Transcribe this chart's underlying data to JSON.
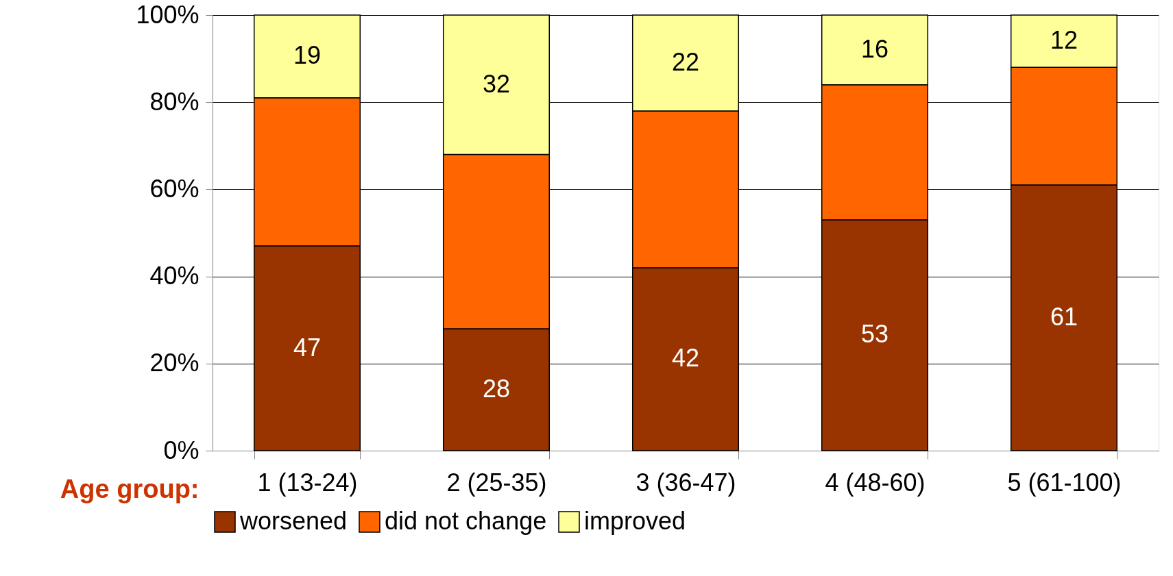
{
  "chart_data": {
    "type": "bar",
    "stacked": true,
    "xlabel": "Age group:",
    "categories": [
      "1 (13-24)",
      "2 (25-35)",
      "3 (36-47)",
      "4 (48-60)",
      "5 (61-100)"
    ],
    "series": [
      {
        "name": "worsened",
        "color": "#993300",
        "values": [
          47,
          28,
          42,
          53,
          61
        ],
        "value_labels": [
          "47",
          "28",
          "42",
          "53",
          "61"
        ]
      },
      {
        "name": "did not change",
        "color": "#ff6600",
        "values": [
          34,
          40,
          36,
          31,
          27
        ]
      },
      {
        "name": "improved",
        "color": "#ffff99",
        "values": [
          19,
          32,
          22,
          16,
          12
        ],
        "value_labels": [
          "19",
          "32",
          "22",
          "16",
          "12"
        ]
      }
    ],
    "ylim": [
      0,
      100
    ],
    "yticks": [
      {
        "value": 0,
        "label": "0%"
      },
      {
        "value": 20,
        "label": "20%"
      },
      {
        "value": 40,
        "label": "40%"
      },
      {
        "value": 60,
        "label": "60%"
      },
      {
        "value": 80,
        "label": "80%"
      },
      {
        "value": 100,
        "label": "100%"
      }
    ],
    "grid": "y",
    "legend": "bottom"
  }
}
